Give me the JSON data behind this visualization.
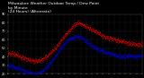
{
  "title": "Milwaukee Weather Outdoor Temp / Dew Point\nby Minute\n(24 Hours) (Alternate)",
  "title_fontsize": 3.2,
  "bg_color": "#000000",
  "plot_bg_color": "#000000",
  "grid_color": "#444444",
  "temp_color": "#ff0000",
  "dew_color": "#0000ff",
  "ylim": [
    20,
    90
  ],
  "xlim": [
    0,
    1440
  ],
  "yticks": [
    20,
    30,
    40,
    50,
    60,
    70,
    80,
    90
  ],
  "ytick_labels": [
    "20",
    "30",
    "40",
    "50",
    "60",
    "70",
    "80",
    "90"
  ],
  "ylabel_fontsize": 2.5,
  "xlabel_fontsize": 1.8,
  "tick_color": "#ffffff",
  "n_points": 1440,
  "temp_shape": [
    [
      0,
      45
    ],
    [
      0.05,
      43
    ],
    [
      0.1,
      40
    ],
    [
      0.15,
      37
    ],
    [
      0.2,
      35
    ],
    [
      0.25,
      37
    ],
    [
      0.3,
      42
    ],
    [
      0.35,
      50
    ],
    [
      0.4,
      60
    ],
    [
      0.45,
      70
    ],
    [
      0.5,
      78
    ],
    [
      0.52,
      80
    ],
    [
      0.54,
      79
    ],
    [
      0.56,
      78
    ],
    [
      0.6,
      74
    ],
    [
      0.65,
      70
    ],
    [
      0.7,
      65
    ],
    [
      0.75,
      62
    ],
    [
      0.8,
      60
    ],
    [
      0.85,
      58
    ],
    [
      0.9,
      56
    ],
    [
      0.95,
      55
    ],
    [
      1.0,
      54
    ]
  ],
  "dew_shape": [
    [
      0,
      30
    ],
    [
      0.05,
      28
    ],
    [
      0.1,
      25
    ],
    [
      0.15,
      22
    ],
    [
      0.2,
      20
    ],
    [
      0.25,
      23
    ],
    [
      0.3,
      30
    ],
    [
      0.35,
      40
    ],
    [
      0.4,
      52
    ],
    [
      0.45,
      60
    ],
    [
      0.5,
      63
    ],
    [
      0.52,
      64
    ],
    [
      0.54,
      63
    ],
    [
      0.56,
      61
    ],
    [
      0.6,
      56
    ],
    [
      0.65,
      50
    ],
    [
      0.7,
      47
    ],
    [
      0.75,
      44
    ],
    [
      0.8,
      42
    ],
    [
      0.85,
      40
    ],
    [
      0.9,
      42
    ],
    [
      0.95,
      40
    ],
    [
      1.0,
      42
    ]
  ]
}
